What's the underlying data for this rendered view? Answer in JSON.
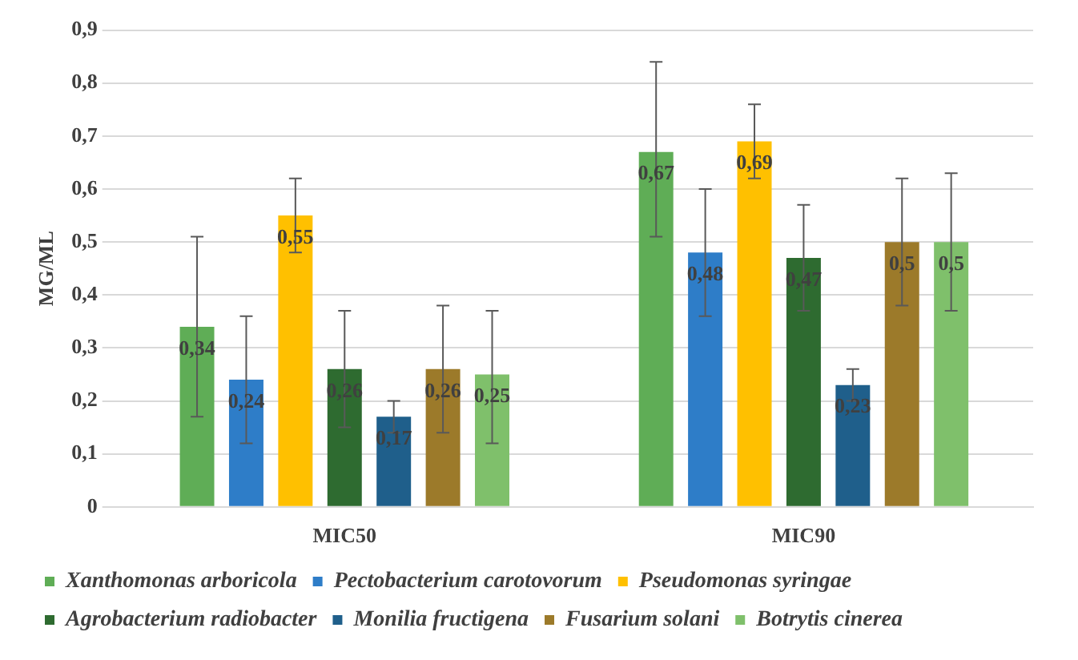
{
  "chart_data": {
    "type": "bar",
    "ylabel": "MG/ML",
    "categories": [
      "MIC50",
      "MIC90"
    ],
    "series": [
      {
        "name": "Xanthomonas arboricola",
        "color": "#5fad56",
        "values": [
          0.34,
          0.67
        ],
        "value_labels": [
          "0,34",
          "0,67"
        ],
        "errors": [
          [
            0.17,
            0.51
          ],
          [
            0.51,
            0.84
          ]
        ]
      },
      {
        "name": "Pectobacterium carotovorum",
        "color": "#2e7dc8",
        "values": [
          0.24,
          0.48
        ],
        "value_labels": [
          "0,24",
          "0,48"
        ],
        "errors": [
          [
            0.12,
            0.36
          ],
          [
            0.36,
            0.6
          ]
        ]
      },
      {
        "name": "Pseudomonas syringae",
        "color": "#ffc000",
        "values": [
          0.55,
          0.69
        ],
        "value_labels": [
          "0,55",
          "0,69"
        ],
        "errors": [
          [
            0.48,
            0.62
          ],
          [
            0.62,
            0.76
          ]
        ]
      },
      {
        "name": "Agrobacterium radiobacter",
        "color": "#2e6b30",
        "values": [
          0.26,
          0.47
        ],
        "value_labels": [
          "0,26",
          "0,47"
        ],
        "errors": [
          [
            0.15,
            0.37
          ],
          [
            0.37,
            0.57
          ]
        ]
      },
      {
        "name": "Monilia fructigena",
        "color": "#1f5f8b",
        "values": [
          0.17,
          0.23
        ],
        "value_labels": [
          "0,17",
          "0,23"
        ],
        "errors": [
          [
            0.14,
            0.2
          ],
          [
            0.2,
            0.26
          ]
        ]
      },
      {
        "name": "Fusarium solani",
        "color": "#9c7a2a",
        "values": [
          0.26,
          0.5
        ],
        "value_labels": [
          "0,26",
          "0,5"
        ],
        "errors": [
          [
            0.14,
            0.38
          ],
          [
            0.38,
            0.62
          ]
        ]
      },
      {
        "name": "Botrytis cinerea",
        "color": "#7fc06b",
        "values": [
          0.25,
          0.5
        ],
        "value_labels": [
          "0,25",
          "0,5"
        ],
        "errors": [
          [
            0.12,
            0.37
          ],
          [
            0.37,
            0.63
          ]
        ]
      }
    ],
    "ylim": [
      0,
      0.9
    ],
    "yticks": [
      0,
      {
        "value": 0.1,
        "label": "0,1"
      },
      {
        "value": 0.2,
        "label": "0,2"
      },
      {
        "value": 0.3,
        "label": "0,3"
      },
      {
        "value": 0.4,
        "label": "0,4"
      },
      {
        "value": 0.5,
        "label": "0,5"
      },
      {
        "value": 0.6,
        "label": "0,6"
      },
      {
        "value": 0.7,
        "label": "0,7"
      },
      {
        "value": 0.8,
        "label": "0,8"
      },
      {
        "value": 0.9,
        "label": "0,9"
      }
    ],
    "grid": "y",
    "legend": "bottom"
  }
}
